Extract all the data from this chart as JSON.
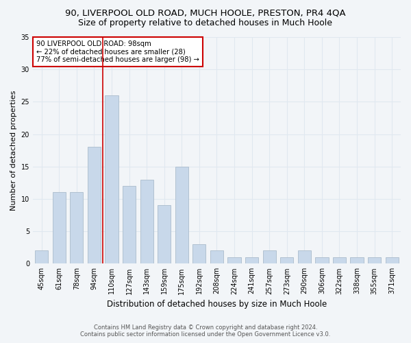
{
  "title": "90, LIVERPOOL OLD ROAD, MUCH HOOLE, PRESTON, PR4 4QA",
  "subtitle": "Size of property relative to detached houses in Much Hoole",
  "xlabel": "Distribution of detached houses by size in Much Hoole",
  "ylabel": "Number of detached properties",
  "bar_color": "#c8d8ea",
  "bar_edge_color": "#aabccc",
  "categories": [
    "45sqm",
    "61sqm",
    "78sqm",
    "94sqm",
    "110sqm",
    "127sqm",
    "143sqm",
    "159sqm",
    "175sqm",
    "192sqm",
    "208sqm",
    "224sqm",
    "241sqm",
    "257sqm",
    "273sqm",
    "290sqm",
    "306sqm",
    "322sqm",
    "338sqm",
    "355sqm",
    "371sqm"
  ],
  "values": [
    2,
    11,
    11,
    18,
    26,
    12,
    13,
    9,
    15,
    3,
    2,
    1,
    1,
    2,
    1,
    2,
    1,
    1,
    1,
    1,
    1
  ],
  "ylim": [
    0,
    35
  ],
  "yticks": [
    0,
    5,
    10,
    15,
    20,
    25,
    30,
    35
  ],
  "vline_index": 3.5,
  "property_label": "90 LIVERPOOL OLD ROAD: 98sqm",
  "annotation_line2": "← 22% of detached houses are smaller (28)",
  "annotation_line3": "77% of semi-detached houses are larger (98) →",
  "footer1": "Contains HM Land Registry data © Crown copyright and database right 2024.",
  "footer2": "Contains public sector information licensed under the Open Government Licence v3.0.",
  "background_color": "#f2f5f8",
  "grid_color": "#e0e8f0",
  "title_fontsize": 9.5,
  "subtitle_fontsize": 9,
  "tick_fontsize": 7,
  "ylabel_fontsize": 8,
  "xlabel_fontsize": 8.5,
  "annotation_box_color": "#ffffff",
  "annotation_box_edge": "#cc0000",
  "vline_color": "#cc0000",
  "bar_width": 0.75
}
